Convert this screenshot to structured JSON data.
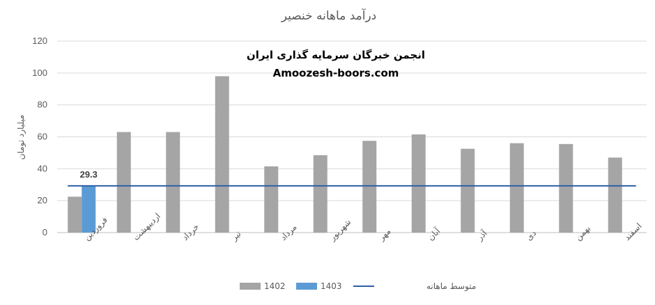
{
  "chart_data": {
    "type": "bar",
    "title": "درآمد ماهانه خنصیر",
    "ylabel": "میلیارد تومان",
    "xlabel": "",
    "ylim": [
      0,
      120
    ],
    "yticks": [
      0,
      20,
      40,
      60,
      80,
      100,
      120
    ],
    "grid": true,
    "legend_position": "bottom",
    "categories": [
      "فروردین",
      "اردیبهشت",
      "خرداد",
      "تیر",
      "مرداد",
      "شهریور",
      "مهر",
      "آبان",
      "آذر",
      "دی",
      "بهمن",
      "اسفند"
    ],
    "series": [
      {
        "name": "1402",
        "type": "bar",
        "color": "#a5a5a5",
        "values": [
          22.5,
          63,
          63,
          98,
          41.5,
          48.5,
          57.5,
          61.5,
          52.5,
          56,
          55.5,
          47
        ]
      },
      {
        "name": "1403",
        "type": "bar",
        "color": "#5b9bd5",
        "values": [
          29.3,
          null,
          null,
          null,
          null,
          null,
          null,
          null,
          null,
          null,
          null,
          null
        ]
      },
      {
        "name": "متوسط ماهانه",
        "type": "line",
        "color": "#2e5fa8",
        "values": [
          29.3,
          29.3,
          29.3,
          29.3,
          29.3,
          29.3,
          29.3,
          29.3,
          29.3,
          29.3,
          29.3,
          29.3
        ]
      }
    ],
    "data_labels": [
      {
        "series": "1403",
        "category": "فروردین",
        "text": "29.3"
      }
    ]
  },
  "watermark": {
    "line1": "انجمن خبرگان سرمایه گذاری ایران",
    "line2": "Amoozesh-boors.com"
  }
}
